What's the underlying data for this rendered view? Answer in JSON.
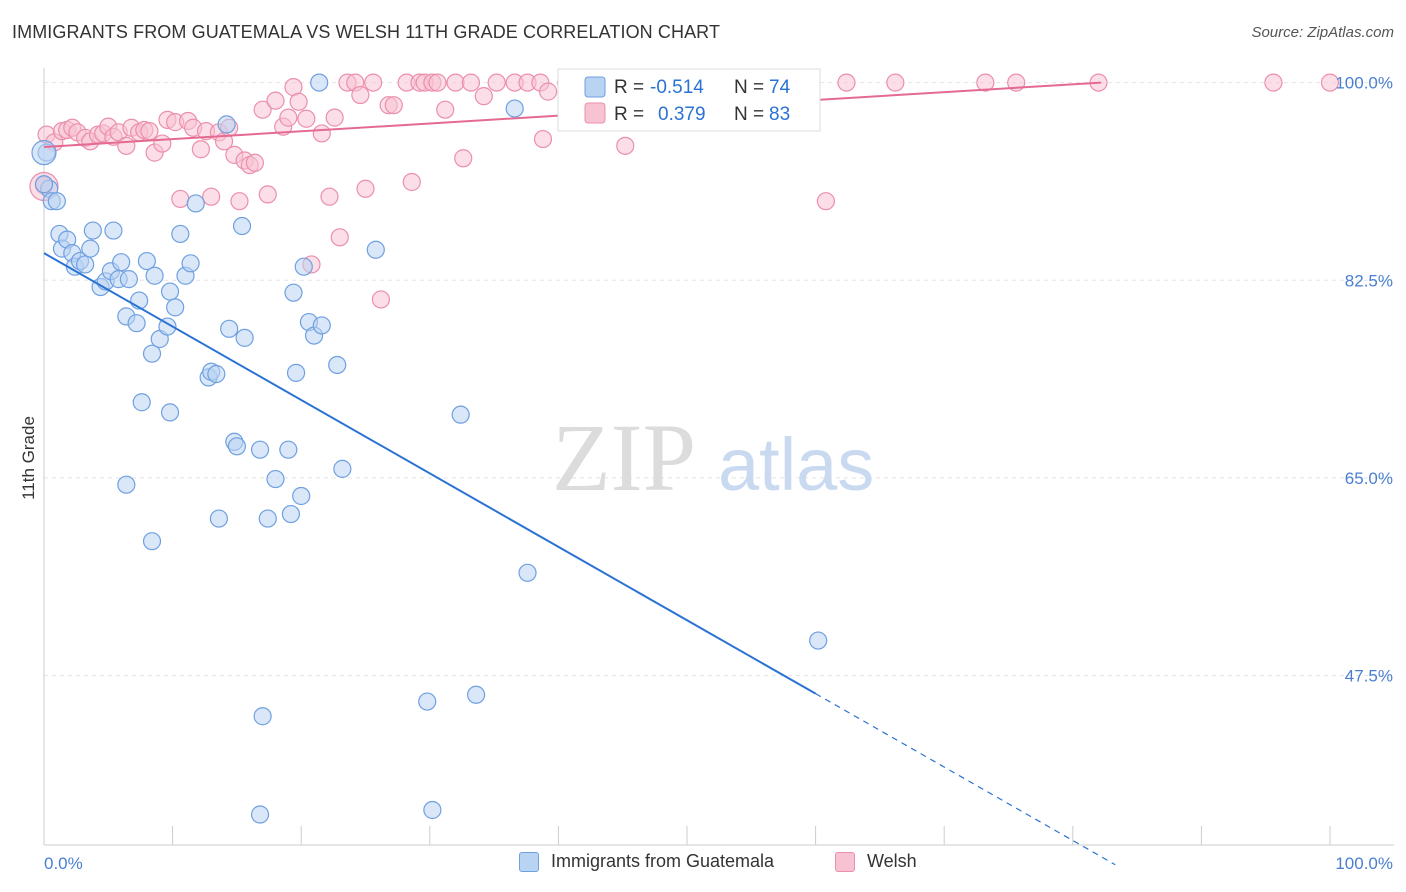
{
  "title": "IMMIGRANTS FROM GUATEMALA VS WELSH 11TH GRADE CORRELATION CHART",
  "source": "Source: ZipAtlas.com",
  "watermark": {
    "zip": "ZIP",
    "atlas": "atlas"
  },
  "colors": {
    "blue_fill": "#b9d3f3",
    "blue_stroke": "#6fa0e0",
    "blue_line": "#2a72d4",
    "pink_fill": "#f7c3d3",
    "pink_stroke": "#ec8fac",
    "pink_line": "#e46a92",
    "tick_text": "#4a7fd0",
    "grid": "#e4e4e4"
  },
  "legend": {
    "r_label": "R =",
    "n_label": "N =",
    "series": [
      {
        "r": "-0.514",
        "n": "74"
      },
      {
        "r": "0.379",
        "n": "83"
      }
    ]
  },
  "bottom_legend": [
    "Immigrants from Guatemala",
    "Welsh"
  ],
  "chart_data": {
    "type": "scatter",
    "title": "IMMIGRANTS FROM GUATEMALA VS WELSH 11TH GRADE CORRELATION CHART",
    "xlabel": "",
    "ylabel": "11th Grade",
    "xlim": [
      0,
      100
    ],
    "ylim": [
      32.5,
      102
    ],
    "x_tick_labels": [
      "0.0%",
      "100.0%"
    ],
    "y_ticks": [
      47.5,
      65.0,
      82.5,
      100.0
    ],
    "y_tick_labels": [
      "47.5%",
      "65.0%",
      "82.5%",
      "100.0%"
    ],
    "grid": true,
    "legend_position": "top-center",
    "series": [
      {
        "name": "Immigrants from Guatemala",
        "color": "#6fa0e0",
        "trend": {
          "x0": 0,
          "y0": 84.9,
          "x1": 60,
          "y1": 45.9,
          "dashed_to_x": 100
        },
        "points": [
          [
            0.2,
            93.8
          ],
          [
            0.4,
            90.6
          ],
          [
            0.6,
            89.5
          ],
          [
            1.2,
            86.6
          ],
          [
            1.4,
            85.3
          ],
          [
            1.8,
            86.1
          ],
          [
            2.2,
            84.9
          ],
          [
            2.4,
            83.7
          ],
          [
            2.8,
            84.2
          ],
          [
            3.2,
            83.9
          ],
          [
            3.6,
            85.3
          ],
          [
            3.8,
            86.9
          ],
          [
            4.4,
            81.9
          ],
          [
            4.8,
            82.4
          ],
          [
            5.2,
            83.3
          ],
          [
            5.4,
            86.9
          ],
          [
            5.8,
            82.6
          ],
          [
            6.0,
            84.1
          ],
          [
            6.4,
            79.3
          ],
          [
            6.6,
            82.6
          ],
          [
            7.2,
            78.7
          ],
          [
            7.4,
            80.7
          ],
          [
            8.0,
            84.2
          ],
          [
            8.4,
            76.0
          ],
          [
            8.6,
            82.9
          ],
          [
            9.0,
            77.3
          ],
          [
            9.6,
            78.4
          ],
          [
            9.8,
            81.5
          ],
          [
            10.2,
            80.1
          ],
          [
            10.6,
            86.6
          ],
          [
            11.0,
            82.9
          ],
          [
            11.4,
            84.0
          ],
          [
            11.8,
            89.3
          ],
          [
            12.8,
            73.9
          ],
          [
            13.0,
            74.4
          ],
          [
            13.4,
            74.2
          ],
          [
            14.2,
            96.3
          ],
          [
            14.4,
            78.2
          ],
          [
            14.8,
            68.2
          ],
          [
            15.0,
            67.8
          ],
          [
            15.4,
            87.3
          ],
          [
            15.6,
            77.4
          ],
          [
            16.8,
            67.5
          ],
          [
            17.4,
            61.4
          ],
          [
            18.0,
            64.9
          ],
          [
            19.0,
            67.5
          ],
          [
            19.2,
            61.8
          ],
          [
            19.4,
            81.4
          ],
          [
            19.6,
            74.3
          ],
          [
            20.0,
            63.4
          ],
          [
            20.2,
            83.7
          ],
          [
            20.6,
            78.8
          ],
          [
            21.0,
            77.6
          ],
          [
            21.6,
            78.5
          ],
          [
            22.8,
            75.0
          ],
          [
            23.2,
            65.8
          ],
          [
            25.8,
            85.2
          ],
          [
            32.4,
            70.6
          ],
          [
            36.6,
            97.7
          ],
          [
            7.6,
            71.7
          ],
          [
            9.8,
            70.8
          ],
          [
            6.4,
            64.4
          ],
          [
            8.4,
            59.4
          ],
          [
            13.6,
            61.4
          ],
          [
            17.0,
            43.9
          ],
          [
            16.8,
            35.2
          ],
          [
            29.8,
            45.2
          ],
          [
            33.6,
            45.8
          ],
          [
            30.2,
            35.6
          ],
          [
            37.6,
            56.6
          ],
          [
            60.2,
            50.6
          ],
          [
            21.4,
            100.0
          ],
          [
            1.0,
            89.5
          ],
          [
            0.0,
            91.0
          ]
        ]
      },
      {
        "name": "Welsh",
        "color": "#ec8fac",
        "trend": {
          "x0": 0,
          "y0": 94.3,
          "x1": 82.2,
          "y1": 100.0
        },
        "points": [
          [
            0.2,
            95.4
          ],
          [
            0.8,
            94.7
          ],
          [
            1.4,
            95.7
          ],
          [
            1.8,
            95.8
          ],
          [
            2.2,
            96.0
          ],
          [
            2.6,
            95.6
          ],
          [
            3.2,
            95.1
          ],
          [
            3.6,
            94.8
          ],
          [
            4.2,
            95.4
          ],
          [
            4.6,
            95.5
          ],
          [
            5.0,
            96.1
          ],
          [
            5.4,
            95.2
          ],
          [
            5.8,
            95.6
          ],
          [
            6.4,
            94.4
          ],
          [
            6.8,
            96.0
          ],
          [
            7.4,
            95.6
          ],
          [
            7.8,
            95.8
          ],
          [
            8.2,
            95.7
          ],
          [
            8.6,
            93.8
          ],
          [
            9.2,
            94.6
          ],
          [
            9.6,
            96.7
          ],
          [
            10.2,
            96.5
          ],
          [
            10.6,
            89.7
          ],
          [
            11.2,
            96.6
          ],
          [
            11.6,
            96.0
          ],
          [
            12.2,
            94.1
          ],
          [
            12.6,
            95.7
          ],
          [
            13.0,
            89.9
          ],
          [
            13.6,
            95.6
          ],
          [
            14.0,
            94.8
          ],
          [
            14.4,
            96.0
          ],
          [
            14.8,
            93.6
          ],
          [
            15.2,
            89.5
          ],
          [
            15.6,
            93.1
          ],
          [
            16.0,
            92.7
          ],
          [
            16.4,
            92.9
          ],
          [
            17.0,
            97.6
          ],
          [
            17.4,
            90.1
          ],
          [
            18.0,
            98.4
          ],
          [
            18.6,
            96.1
          ],
          [
            19.0,
            96.9
          ],
          [
            19.4,
            99.6
          ],
          [
            19.8,
            98.3
          ],
          [
            20.4,
            96.8
          ],
          [
            20.8,
            83.9
          ],
          [
            21.6,
            95.5
          ],
          [
            22.2,
            89.9
          ],
          [
            22.6,
            96.9
          ],
          [
            23.0,
            86.3
          ],
          [
            23.6,
            100.0
          ],
          [
            24.2,
            100.0
          ],
          [
            24.6,
            98.9
          ],
          [
            25.0,
            90.6
          ],
          [
            25.6,
            100.0
          ],
          [
            26.2,
            80.8
          ],
          [
            26.8,
            98.0
          ],
          [
            27.2,
            98.0
          ],
          [
            28.2,
            100.0
          ],
          [
            28.6,
            91.2
          ],
          [
            29.2,
            100.0
          ],
          [
            29.6,
            100.0
          ],
          [
            30.2,
            100.0
          ],
          [
            30.6,
            100.0
          ],
          [
            31.2,
            97.6
          ],
          [
            32.0,
            100.0
          ],
          [
            32.6,
            93.3
          ],
          [
            33.2,
            100.0
          ],
          [
            34.2,
            98.8
          ],
          [
            35.2,
            100.0
          ],
          [
            36.6,
            100.0
          ],
          [
            37.6,
            100.0
          ],
          [
            38.6,
            100.0
          ],
          [
            38.8,
            95.0
          ],
          [
            39.2,
            99.2
          ],
          [
            40.6,
            100.0
          ],
          [
            41.6,
            100.0
          ],
          [
            43.6,
            100.0
          ],
          [
            45.2,
            94.4
          ],
          [
            47.2,
            99.2
          ],
          [
            60.8,
            89.5
          ],
          [
            66.2,
            100.0
          ],
          [
            73.2,
            100.0
          ],
          [
            75.6,
            100.0
          ]
        ]
      }
    ],
    "extra_pink_points": [
      [
        62.4,
        100.0
      ],
      [
        82.0,
        100.0
      ],
      [
        95.6,
        100.0
      ],
      [
        100.0,
        100.0
      ],
      [
        0.0,
        90.9
      ]
    ]
  }
}
